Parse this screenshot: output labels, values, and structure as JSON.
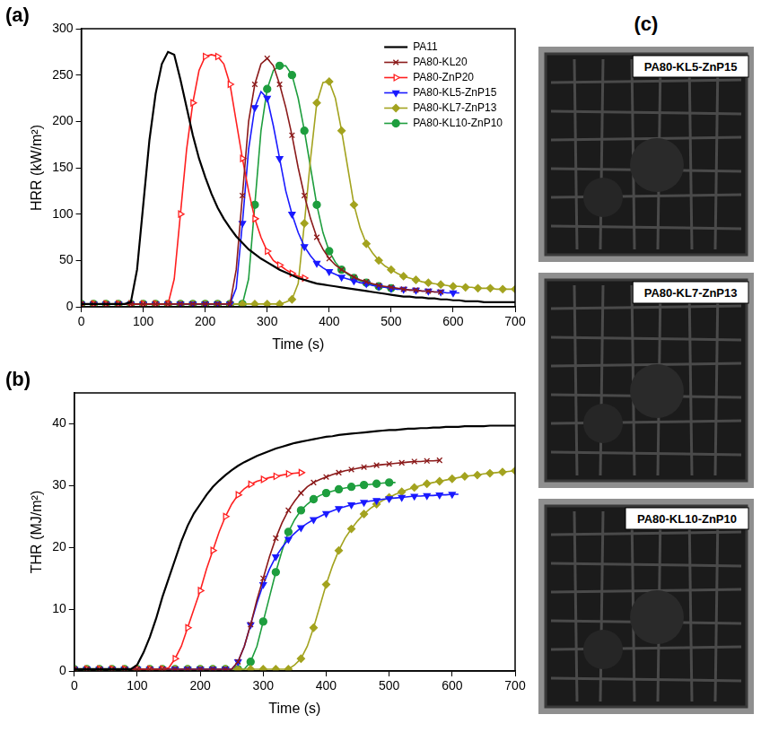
{
  "chart_data": [
    {
      "type": "line",
      "panel": "(a)",
      "x_label": "Time (s)",
      "y_label": "HRR (kW/m²)",
      "xlim": [
        0,
        700
      ],
      "xticks": [
        0,
        100,
        200,
        300,
        400,
        500,
        600,
        700
      ],
      "ylim": [
        0,
        300
      ],
      "yticks": [
        0,
        50,
        100,
        150,
        200,
        250,
        300
      ],
      "grid": false,
      "legend": "top-right",
      "x": [
        0,
        10,
        20,
        30,
        40,
        50,
        60,
        70,
        80,
        90,
        100,
        110,
        120,
        130,
        140,
        150,
        160,
        170,
        180,
        190,
        200,
        210,
        220,
        230,
        240,
        250,
        260,
        270,
        280,
        290,
        300,
        310,
        320,
        330,
        340,
        350,
        360,
        370,
        380,
        390,
        400,
        410,
        420,
        430,
        440,
        450,
        460,
        470,
        480,
        490,
        500,
        510,
        520,
        530,
        540,
        550,
        560,
        570,
        580,
        590,
        600,
        610,
        620,
        630,
        640,
        650,
        660,
        670,
        680,
        690,
        700
      ],
      "series": [
        {
          "name": "PA11",
          "color": "#000000",
          "marker": "none",
          "values": [
            3,
            3,
            3,
            3,
            3,
            3,
            3,
            3,
            5,
            40,
            110,
            180,
            230,
            262,
            275,
            272,
            245,
            215,
            185,
            160,
            140,
            122,
            107,
            95,
            85,
            76,
            69,
            62,
            57,
            52,
            48,
            44,
            40,
            37,
            34,
            31,
            29,
            27,
            25,
            24,
            23,
            22,
            21,
            20,
            19,
            18,
            17,
            16,
            15,
            14,
            13,
            12,
            11,
            11,
            10,
            10,
            9,
            9,
            8,
            8,
            7,
            7,
            6,
            6,
            6,
            5,
            5,
            5,
            5,
            5,
            5
          ]
        },
        {
          "name": "PA80-KL20",
          "color": "#8b1a1a",
          "marker": "x",
          "values": [
            3,
            3,
            3,
            3,
            3,
            3,
            3,
            3,
            3,
            3,
            3,
            3,
            3,
            3,
            3,
            3,
            3,
            3,
            3,
            3,
            3,
            3,
            3,
            3,
            3,
            40,
            120,
            200,
            240,
            262,
            268,
            260,
            240,
            215,
            185,
            150,
            120,
            95,
            75,
            62,
            52,
            45,
            40,
            36,
            32,
            29,
            27,
            25,
            23,
            22,
            21,
            20,
            19,
            18,
            18,
            17,
            17,
            16,
            16,
            null,
            null,
            null,
            null,
            null,
            null,
            null,
            null,
            null,
            null,
            null,
            null
          ]
        },
        {
          "name": "PA80-ZnP20",
          "color": "#ff2020",
          "marker": "triangle-right",
          "values": [
            3,
            3,
            3,
            3,
            3,
            3,
            3,
            3,
            3,
            3,
            3,
            3,
            3,
            3,
            3,
            30,
            100,
            170,
            220,
            255,
            270,
            272,
            270,
            262,
            240,
            200,
            160,
            125,
            95,
            75,
            60,
            50,
            45,
            40,
            36,
            33,
            31,
            null,
            null,
            null,
            null,
            null,
            null,
            null,
            null,
            null,
            null,
            null,
            null,
            null,
            null,
            null,
            null,
            null,
            null,
            null,
            null,
            null,
            null,
            null,
            null,
            null,
            null,
            null,
            null,
            null,
            null,
            null,
            null,
            null,
            null
          ]
        },
        {
          "name": "PA80-KL5-ZnP15",
          "color": "#1a1aff",
          "marker": "triangle-down",
          "values": [
            3,
            3,
            3,
            3,
            3,
            3,
            3,
            3,
            3,
            3,
            3,
            3,
            3,
            3,
            3,
            3,
            3,
            3,
            3,
            3,
            3,
            3,
            3,
            3,
            3,
            20,
            90,
            170,
            215,
            232,
            225,
            195,
            160,
            125,
            100,
            80,
            65,
            55,
            47,
            42,
            38,
            35,
            32,
            30,
            28,
            26,
            25,
            23,
            22,
            21,
            20,
            19,
            19,
            18,
            18,
            17,
            17,
            16,
            16,
            15,
            15,
            15,
            null,
            null,
            null,
            null,
            null,
            null,
            null,
            null,
            null
          ]
        },
        {
          "name": "PA80-KL7-ZnP13",
          "color": "#a3a31f",
          "marker": "diamond",
          "values": [
            3,
            3,
            3,
            3,
            3,
            3,
            3,
            3,
            3,
            3,
            3,
            3,
            3,
            3,
            3,
            3,
            3,
            3,
            3,
            3,
            3,
            3,
            3,
            3,
            3,
            3,
            3,
            3,
            3,
            3,
            3,
            3,
            3,
            5,
            8,
            25,
            90,
            160,
            220,
            242,
            243,
            225,
            190,
            150,
            110,
            85,
            68,
            58,
            50,
            44,
            40,
            36,
            33,
            31,
            29,
            27,
            26,
            25,
            24,
            23,
            22,
            22,
            21,
            21,
            20,
            20,
            20,
            19,
            19,
            19,
            19
          ]
        },
        {
          "name": "PA80-KL10-ZnP10",
          "color": "#1e9e3e",
          "marker": "circle",
          "values": [
            3,
            3,
            3,
            3,
            3,
            3,
            3,
            3,
            3,
            3,
            3,
            3,
            3,
            3,
            3,
            3,
            3,
            3,
            3,
            3,
            3,
            3,
            3,
            3,
            3,
            3,
            3,
            30,
            110,
            190,
            235,
            255,
            260,
            260,
            250,
            225,
            190,
            150,
            110,
            80,
            60,
            48,
            40,
            35,
            31,
            28,
            26,
            24,
            22,
            21,
            20,
            19,
            null,
            null,
            null,
            null,
            null,
            null,
            null,
            null,
            null,
            null,
            null,
            null,
            null,
            null,
            null,
            null,
            null,
            null,
            null
          ]
        }
      ]
    },
    {
      "type": "line",
      "panel": "(b)",
      "x_label": "Time (s)",
      "y_label": "THR (MJ/m²)",
      "xlim": [
        0,
        700
      ],
      "xticks": [
        0,
        100,
        200,
        300,
        400,
        500,
        600,
        700
      ],
      "ylim": [
        0,
        45
      ],
      "yticks": [
        0,
        10,
        20,
        30,
        40
      ],
      "grid": false,
      "x": [
        0,
        10,
        20,
        30,
        40,
        50,
        60,
        70,
        80,
        90,
        100,
        110,
        120,
        130,
        140,
        150,
        160,
        170,
        180,
        190,
        200,
        210,
        220,
        230,
        240,
        250,
        260,
        270,
        280,
        290,
        300,
        310,
        320,
        330,
        340,
        350,
        360,
        370,
        380,
        390,
        400,
        410,
        420,
        430,
        440,
        450,
        460,
        470,
        480,
        490,
        500,
        510,
        520,
        530,
        540,
        550,
        560,
        570,
        580,
        590,
        600,
        610,
        620,
        630,
        640,
        650,
        660,
        670,
        680,
        690,
        700
      ],
      "series": [
        {
          "name": "PA11",
          "color": "#000000",
          "marker": "none",
          "values": [
            0.3,
            0.3,
            0.3,
            0.3,
            0.3,
            0.3,
            0.3,
            0.3,
            0.3,
            0.3,
            1,
            3,
            5.5,
            8.5,
            12,
            15,
            18,
            21,
            23.5,
            25.5,
            27,
            28.5,
            29.8,
            30.8,
            31.7,
            32.5,
            33.2,
            33.8,
            34.3,
            34.8,
            35.2,
            35.6,
            36,
            36.3,
            36.6,
            36.9,
            37.1,
            37.3,
            37.5,
            37.7,
            37.9,
            38,
            38.2,
            38.3,
            38.4,
            38.5,
            38.6,
            38.7,
            38.8,
            38.9,
            39,
            39,
            39.1,
            39.2,
            39.2,
            39.3,
            39.3,
            39.4,
            39.4,
            39.5,
            39.5,
            39.5,
            39.6,
            39.6,
            39.6,
            39.6,
            39.7,
            39.7,
            39.7,
            39.7,
            39.7
          ]
        },
        {
          "name": "PA80-KL20",
          "color": "#8b1a1a",
          "marker": "x",
          "values": [
            0.3,
            0.3,
            0.3,
            0.3,
            0.3,
            0.3,
            0.3,
            0.3,
            0.3,
            0.3,
            0.3,
            0.3,
            0.3,
            0.3,
            0.3,
            0.3,
            0.3,
            0.3,
            0.3,
            0.3,
            0.3,
            0.3,
            0.3,
            0.3,
            0.3,
            0.3,
            1.5,
            4,
            7.5,
            11.5,
            15,
            18.5,
            21.5,
            24,
            26,
            27.5,
            28.8,
            29.8,
            30.5,
            31,
            31.4,
            31.8,
            32.1,
            32.4,
            32.6,
            32.8,
            33,
            33.1,
            33.3,
            33.4,
            33.5,
            33.6,
            33.7,
            33.8,
            33.9,
            33.9,
            34,
            34,
            34.1,
            null,
            null,
            null,
            null,
            null,
            null,
            null,
            null,
            null,
            null,
            null,
            null
          ]
        },
        {
          "name": "PA80-ZnP20",
          "color": "#ff2020",
          "marker": "triangle-right",
          "values": [
            0.3,
            0.3,
            0.3,
            0.3,
            0.3,
            0.3,
            0.3,
            0.3,
            0.3,
            0.3,
            0.3,
            0.3,
            0.3,
            0.3,
            0.3,
            0.5,
            2,
            4,
            7,
            10,
            13,
            16.5,
            19.5,
            22.5,
            25,
            27,
            28.5,
            29.5,
            30.2,
            30.7,
            31,
            31.3,
            31.5,
            31.7,
            31.9,
            32,
            32.1,
            null,
            null,
            null,
            null,
            null,
            null,
            null,
            null,
            null,
            null,
            null,
            null,
            null,
            null,
            null,
            null,
            null,
            null,
            null,
            null,
            null,
            null,
            null,
            null,
            null,
            null,
            null,
            null,
            null,
            null,
            null,
            null,
            null,
            null
          ]
        },
        {
          "name": "PA80-KL5-ZnP15",
          "color": "#1a1aff",
          "marker": "triangle-down",
          "values": [
            0.3,
            0.3,
            0.3,
            0.3,
            0.3,
            0.3,
            0.3,
            0.3,
            0.3,
            0.3,
            0.3,
            0.3,
            0.3,
            0.3,
            0.3,
            0.3,
            0.3,
            0.3,
            0.3,
            0.3,
            0.3,
            0.3,
            0.3,
            0.3,
            0.3,
            0.3,
            1.5,
            4,
            7.5,
            11,
            14,
            16.5,
            18.5,
            20,
            21.3,
            22.3,
            23.2,
            23.9,
            24.5,
            25,
            25.5,
            25.9,
            26.3,
            26.6,
            26.9,
            27.1,
            27.3,
            27.5,
            27.6,
            27.8,
            27.9,
            28,
            28.1,
            28.2,
            28.3,
            28.3,
            28.4,
            28.4,
            28.5,
            28.5,
            28.6,
            28.6,
            null,
            null,
            null,
            null,
            null,
            null,
            null,
            null,
            null
          ]
        },
        {
          "name": "PA80-KL7-ZnP13",
          "color": "#a3a31f",
          "marker": "diamond",
          "values": [
            0.3,
            0.3,
            0.3,
            0.3,
            0.3,
            0.3,
            0.3,
            0.3,
            0.3,
            0.3,
            0.3,
            0.3,
            0.3,
            0.3,
            0.3,
            0.3,
            0.3,
            0.3,
            0.3,
            0.3,
            0.3,
            0.3,
            0.3,
            0.3,
            0.3,
            0.3,
            0.3,
            0.3,
            0.3,
            0.3,
            0.3,
            0.3,
            0.3,
            0.3,
            0.3,
            1,
            2,
            4,
            7,
            10.5,
            14,
            17,
            19.5,
            21.5,
            23,
            24.3,
            25.4,
            26.3,
            27,
            27.6,
            28.1,
            28.6,
            29,
            29.4,
            29.7,
            30,
            30.3,
            30.5,
            30.7,
            30.9,
            31.1,
            31.3,
            31.5,
            31.6,
            31.7,
            31.9,
            32,
            32.1,
            32.2,
            32.3,
            32.4
          ]
        },
        {
          "name": "PA80-KL10-ZnP10",
          "color": "#1e9e3e",
          "marker": "circle",
          "values": [
            0.3,
            0.3,
            0.3,
            0.3,
            0.3,
            0.3,
            0.3,
            0.3,
            0.3,
            0.3,
            0.3,
            0.3,
            0.3,
            0.3,
            0.3,
            0.3,
            0.3,
            0.3,
            0.3,
            0.3,
            0.3,
            0.3,
            0.3,
            0.3,
            0.3,
            0.3,
            0.3,
            0.3,
            1.5,
            4,
            8,
            12,
            16,
            19.5,
            22.5,
            24.5,
            26,
            27,
            27.8,
            28.4,
            28.8,
            29.1,
            29.4,
            29.6,
            29.8,
            30,
            30.1,
            30.2,
            30.3,
            30.4,
            30.5,
            30.5,
            null,
            null,
            null,
            null,
            null,
            null,
            null,
            null,
            null,
            null,
            null,
            null,
            null,
            null,
            null,
            null,
            null,
            null,
            null
          ]
        }
      ]
    }
  ],
  "panel_c": {
    "letter": "(c)",
    "images": [
      "PA80-KL5-ZnP15",
      "PA80-KL7-ZnP13",
      "PA80-KL10-ZnP10"
    ]
  }
}
